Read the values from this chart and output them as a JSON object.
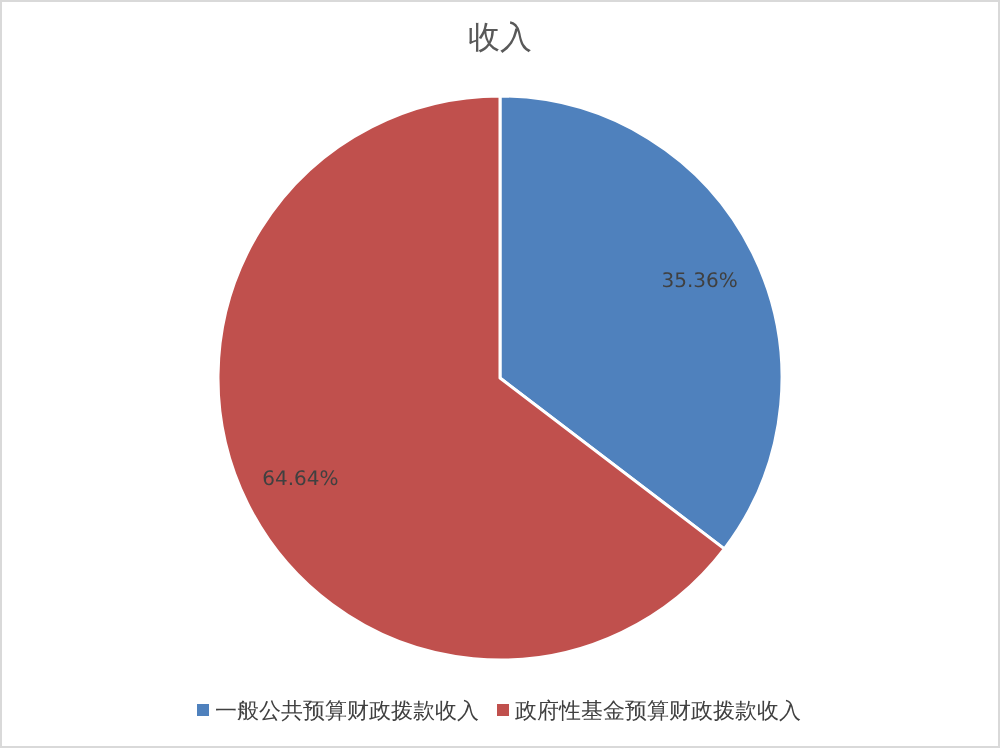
{
  "chart_data": {
    "type": "pie",
    "title": "收入",
    "categories": [
      "一般公共预算财政拨款收入",
      "政府性基金预算财政拨款收入"
    ],
    "values": [
      35.36,
      64.64
    ],
    "colors": [
      "#4f81bd",
      "#c0504d"
    ],
    "value_labels": [
      "35.36%",
      "64.64%"
    ],
    "legend": "bottom"
  }
}
